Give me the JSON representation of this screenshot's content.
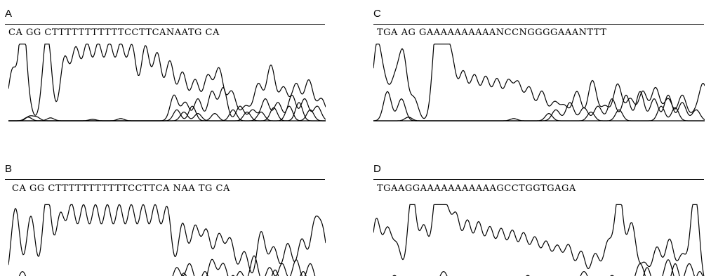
{
  "panels": [
    {
      "label": "A",
      "sequence": "CA GG CTTTTTTTTTTTCCTTCANAATG CA"
    },
    {
      "label": "B",
      "sequence": "CA GG CTTTTTTTTTTTCCTTCA NAA TG CA"
    },
    {
      "label": "C",
      "sequence": "TGA AG GAAAAAAAAAANCCNGGGGAAANTTT"
    },
    {
      "label": "D",
      "sequence": "TGAAGGAAAAAAAAAAAGCCTGGTGAGA"
    }
  ],
  "colors": {
    "trace": "#000000",
    "background": "#ffffff"
  }
}
